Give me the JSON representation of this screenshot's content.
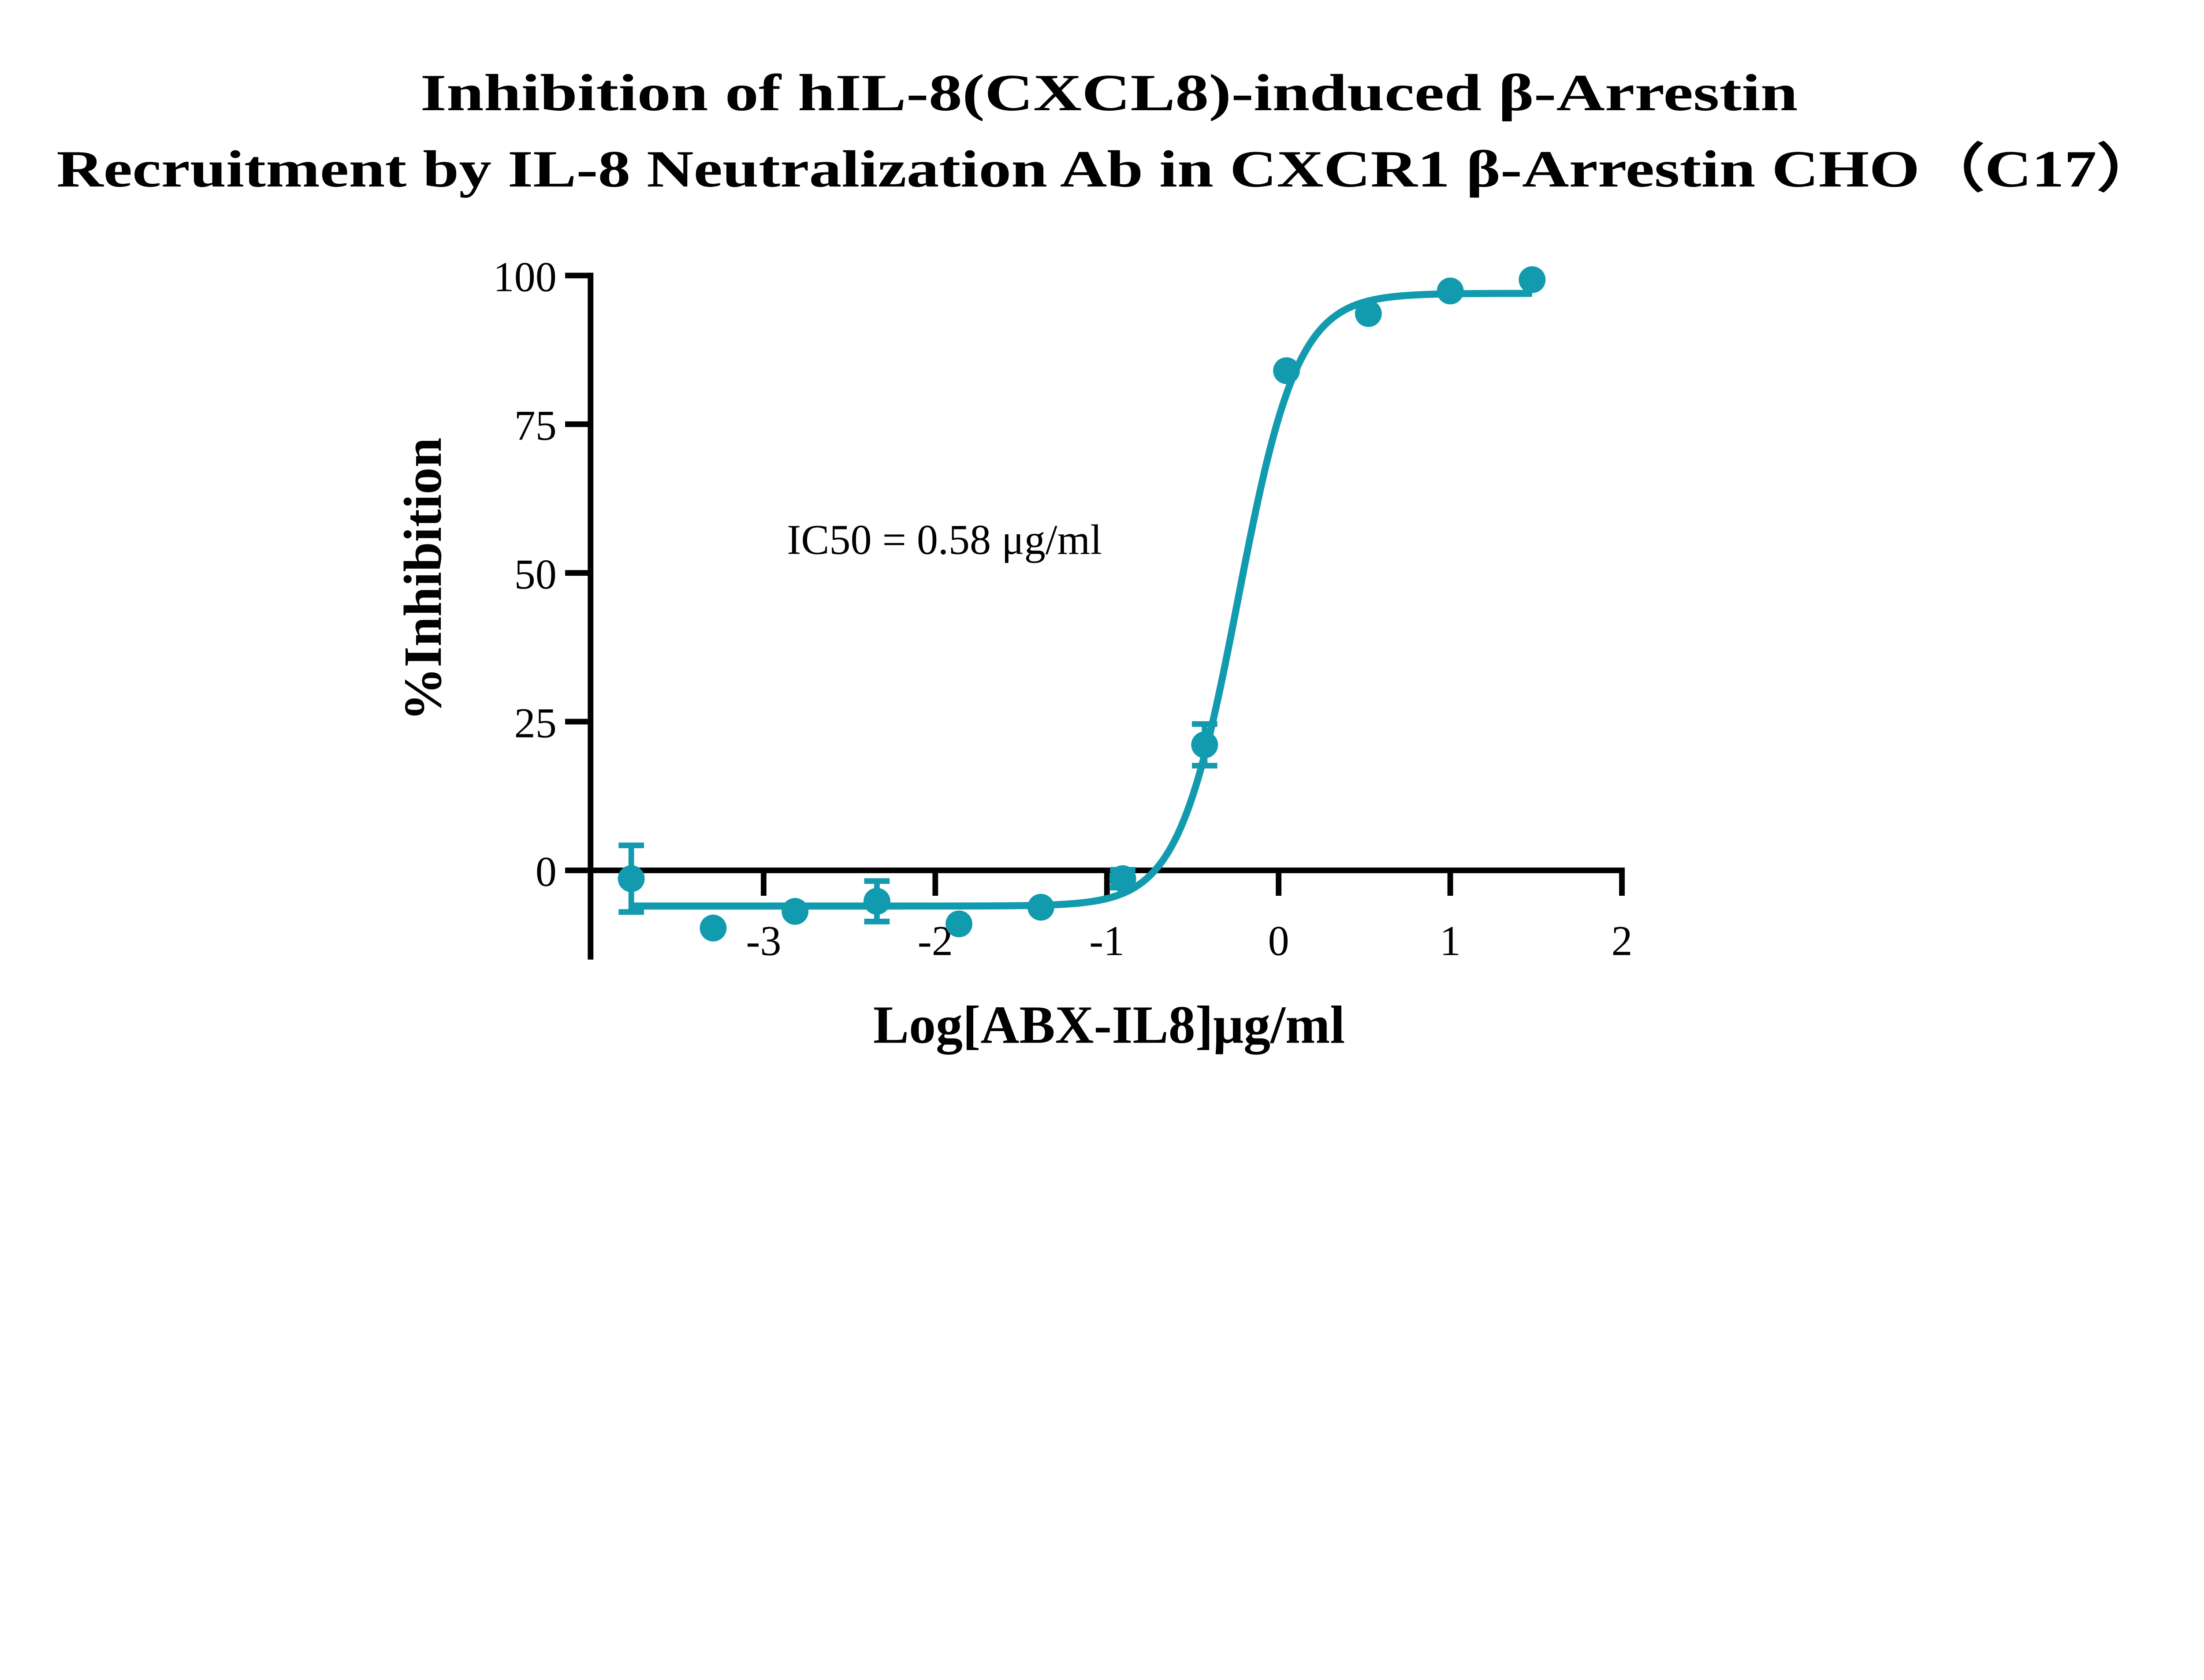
{
  "chart_data": {
    "type": "scatter",
    "title_line1": "Inhibition of hIL-8(CXCL8)-induced β-Arrestin",
    "title_line2": "Recruitment by IL-8 Neutralization Ab in CXCR1 β-Arrestin CHO（C17）",
    "xlabel": "Log[ABX-IL8]μg/ml",
    "ylabel": "%Inhibition",
    "annotation": "IC50 = 0.58 μg/ml",
    "xlim": [
      -3.85,
      2
    ],
    "ylim": [
      -15,
      100
    ],
    "xticks": [
      -3,
      -2,
      -1,
      0,
      1,
      2
    ],
    "xtick_labels": [
      "-3",
      "-2",
      "-1",
      "0",
      "1",
      "2"
    ],
    "yticks": [
      0,
      25,
      50,
      75,
      100
    ],
    "ytick_labels": [
      "0",
      "25",
      "50",
      "75",
      "100"
    ],
    "grid": false,
    "color": "#129aaf",
    "points": [
      {
        "x": -3.771,
        "y": -1.4,
        "err": 5.6
      },
      {
        "x": -3.294,
        "y": -9.7,
        "err": 0
      },
      {
        "x": -2.817,
        "y": -6.9,
        "err": 0
      },
      {
        "x": -2.34,
        "y": -5.2,
        "err": 3.4
      },
      {
        "x": -1.862,
        "y": -9.0,
        "err": 0
      },
      {
        "x": -1.385,
        "y": -6.2,
        "err": 0
      },
      {
        "x": -0.908,
        "y": -1.4,
        "err": 1.5
      },
      {
        "x": -0.431,
        "y": 21.1,
        "err": 3.5
      },
      {
        "x": 0.046,
        "y": 84.0,
        "err": 0
      },
      {
        "x": 0.523,
        "y": 93.6,
        "err": 0
      },
      {
        "x": 1.0,
        "y": 97.4,
        "err": 0
      },
      {
        "x": 1.477,
        "y": 99.3,
        "err": 0
      }
    ],
    "fit": {
      "model": "4PL",
      "bottom": -6,
      "top": 97,
      "logIC50": -0.237,
      "hill": 2.5,
      "x_range": [
        -3.771,
        1.477
      ]
    }
  }
}
